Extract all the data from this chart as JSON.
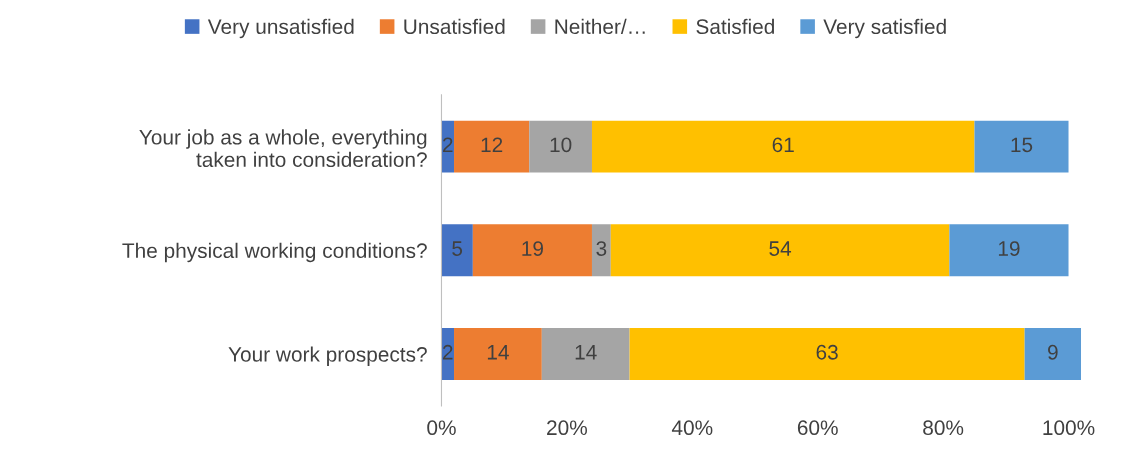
{
  "chart_data": {
    "type": "bar",
    "orientation": "horizontal",
    "stacked": true,
    "data_labels": true,
    "legend": "top",
    "grid": false,
    "categories": [
      "Your job as a whole, everything\ntaken into consideration?",
      "The physical working conditions?",
      "Your work prospects?"
    ],
    "xlim": [
      0,
      102
    ],
    "xticks": [
      {
        "value": 0,
        "label": "0%"
      },
      {
        "value": 20,
        "label": "20%"
      },
      {
        "value": 40,
        "label": "40%"
      },
      {
        "value": 60,
        "label": "60%"
      },
      {
        "value": 80,
        "label": "80%"
      },
      {
        "value": 100,
        "label": "100%"
      }
    ],
    "series": [
      {
        "name": "Very unsatisfied",
        "color": "#4472c4",
        "values": [
          2,
          5,
          2
        ]
      },
      {
        "name": "Unsatisfied",
        "color": "#ed7d31",
        "values": [
          12,
          19,
          14
        ]
      },
      {
        "name": "Neither/…",
        "color": "#a5a5a5",
        "values": [
          10,
          3,
          14
        ]
      },
      {
        "name": "Satisfied",
        "color": "#ffc000",
        "values": [
          61,
          54,
          63
        ]
      },
      {
        "name": "Very satisfied",
        "color": "#5b9bd5",
        "values": [
          15,
          19,
          9
        ]
      }
    ]
  }
}
